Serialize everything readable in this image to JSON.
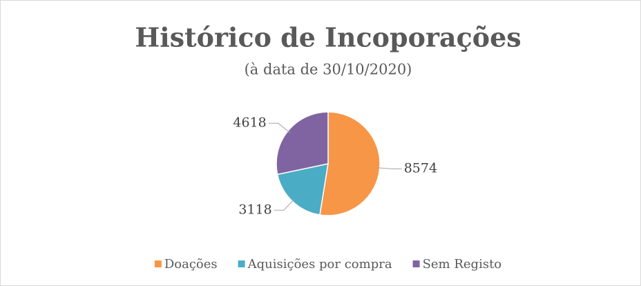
{
  "chart_data": {
    "type": "pie",
    "title": "Histórico de Incoporações",
    "subtitle": "(à data de 30/10/2020)",
    "categories": [
      "Doações",
      "Aquisições por compra",
      "Sem Registo"
    ],
    "values": [
      8574,
      3118,
      4618
    ],
    "colors": [
      "#F79646",
      "#4BACC6",
      "#8064A2"
    ],
    "legend": "bottom"
  }
}
